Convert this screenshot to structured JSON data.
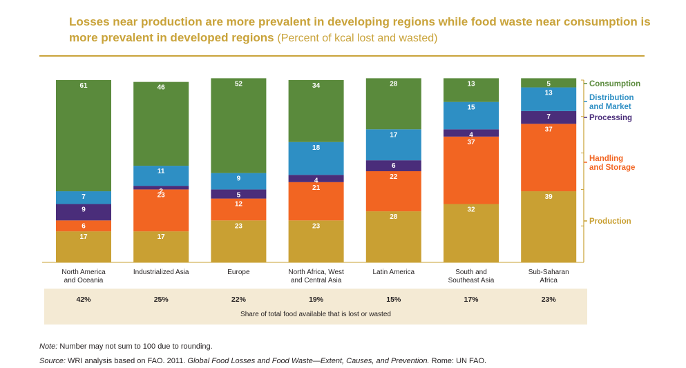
{
  "title": {
    "main": "Losses near production are more prevalent in developing regions while food waste near consumption is more prevalent in developed regions",
    "subtitle": "(Percent of kcal lost and wasted)"
  },
  "chart_data": {
    "type": "bar",
    "stacked": true,
    "ylim": [
      0,
      100
    ],
    "categories": [
      [
        "North America",
        "and Oceania"
      ],
      [
        "Industrialized Asia"
      ],
      [
        "Europe"
      ],
      [
        "North Africa, West",
        "and Central Asia"
      ],
      [
        "Latin America"
      ],
      [
        "South and",
        "Southeast Asia"
      ],
      [
        "Sub-Saharan",
        "Africa"
      ]
    ],
    "series": [
      {
        "name": "Production",
        "color": "#c9a033",
        "values": [
          17,
          17,
          23,
          23,
          28,
          32,
          39
        ]
      },
      {
        "name": "Handling and Storage",
        "color": "#f26522",
        "values": [
          6,
          23,
          12,
          21,
          22,
          37,
          37
        ]
      },
      {
        "name": "Processing",
        "color": "#4a2d7a",
        "values": [
          9,
          2,
          5,
          4,
          6,
          4,
          7
        ]
      },
      {
        "name": "Distribution and Market",
        "color": "#2e8fc4",
        "values": [
          7,
          11,
          9,
          18,
          17,
          15,
          13
        ]
      },
      {
        "name": "Consumption",
        "color": "#5a8a3c",
        "values": [
          61,
          46,
          52,
          34,
          28,
          13,
          5
        ]
      }
    ],
    "legend": [
      {
        "lines": [
          "Consumption"
        ],
        "color": "#5a8a3c"
      },
      {
        "lines": [
          "Distribution",
          "and Market"
        ],
        "color": "#2e8fc4"
      },
      {
        "lines": [
          "Processing"
        ],
        "color": "#4a2d7a"
      },
      {
        "lines": [
          "Handling",
          "and Storage"
        ],
        "color": "#f26522"
      },
      {
        "lines": [
          "Production"
        ],
        "color": "#c9a033"
      }
    ],
    "share_values": [
      "42%",
      "25%",
      "22%",
      "19%",
      "15%",
      "17%",
      "23%"
    ],
    "share_label": "Share of total food available that is lost or wasted",
    "axis_color": "#c9a033"
  },
  "footer": {
    "note_prefix": "Note:",
    "note_text": " Number may not sum to 100 due to rounding.",
    "source_prefix": "Source:",
    "source_text1": " WRI analysis based on FAO. 2011. ",
    "source_italic": "Global Food Losses and Food Waste—Extent, Causes, and Prevention.",
    "source_text2": " Rome: UN FAO."
  }
}
